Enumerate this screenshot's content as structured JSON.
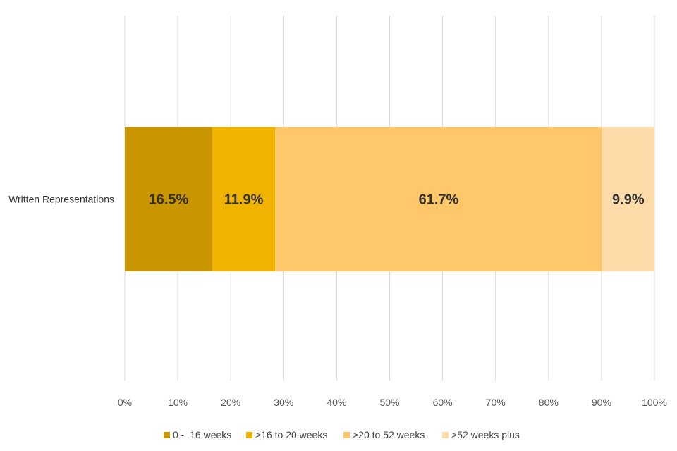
{
  "chart_data": {
    "type": "bar",
    "orientation": "horizontal",
    "stacked": true,
    "categories": [
      "Written Representations"
    ],
    "series": [
      {
        "name": "0 -  16 weeks",
        "values": [
          16.5
        ],
        "color": "#c99500",
        "label": "16.5%"
      },
      {
        "name": ">16 to 20 weeks",
        "values": [
          11.9
        ],
        "color": "#f0b400",
        "label": "11.9%"
      },
      {
        "name": ">20 to 52 weeks",
        "values": [
          61.7
        ],
        "color": "#fdc76a",
        "label": "61.7%"
      },
      {
        "name": ">52 weeks plus",
        "values": [
          9.9
        ],
        "color": "#fddcaa",
        "label": "9.9%"
      }
    ],
    "xlim": [
      0,
      100
    ],
    "x_ticks": [
      0,
      10,
      20,
      30,
      40,
      50,
      60,
      70,
      80,
      90,
      100
    ],
    "x_tick_labels": [
      "0%",
      "10%",
      "20%",
      "30%",
      "40%",
      "50%",
      "60%",
      "70%",
      "80%",
      "90%",
      "100%"
    ],
    "grid": true,
    "grid_color": "#d9d9d9",
    "legend_placement": "bottom"
  }
}
